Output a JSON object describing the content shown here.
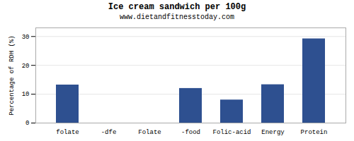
{
  "chart_data": {
    "type": "bar",
    "title": "Ice cream sandwich per 100g",
    "subtitle": "www.dietandfitnesstoday.com",
    "ylabel": "Percentage of RDH (%)",
    "categories": [
      "folate",
      "-dfe",
      "Folate",
      "-food",
      "Folic-acid",
      "Energy",
      "Protein"
    ],
    "values": [
      13.2,
      0,
      0,
      12.0,
      8.0,
      13.3,
      29.2
    ],
    "color": "#2e5090",
    "ylim": [
      0,
      33
    ],
    "yticks": [
      0,
      10,
      20,
      30
    ],
    "grid": true
  }
}
